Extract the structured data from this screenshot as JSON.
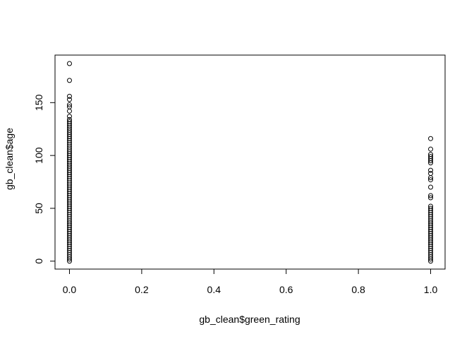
{
  "chart_data": {
    "type": "scatter",
    "title": "",
    "xlabel": "gb_clean$green_rating",
    "ylabel": "gb_clean$age",
    "xlim": [
      -0.04,
      1.04
    ],
    "ylim": [
      -7.5,
      195
    ],
    "x_ticks": [
      0.0,
      0.2,
      0.4,
      0.6,
      0.8,
      1.0
    ],
    "x_tick_labels": [
      "0.0",
      "0.2",
      "0.4",
      "0.6",
      "0.8",
      "1.0"
    ],
    "y_ticks": [
      0,
      50,
      100,
      150
    ],
    "y_tick_labels": [
      "0",
      "50",
      "100",
      "150"
    ],
    "grid": false,
    "legend": "none",
    "marker": "open-circle",
    "series": [
      {
        "x": 0,
        "y": [
          187,
          171,
          156,
          153,
          148,
          146,
          142,
          137,
          134,
          132,
          130,
          128,
          126,
          124,
          122,
          120,
          118,
          116,
          114,
          112,
          110,
          108,
          106,
          104,
          102,
          100,
          98,
          96,
          94,
          92,
          90,
          88,
          86,
          84,
          82,
          80,
          78,
          76,
          74,
          72,
          70,
          68,
          66,
          64,
          62,
          60,
          58,
          56,
          54,
          52,
          50,
          48,
          46,
          44,
          42,
          40,
          38,
          36,
          34,
          32,
          30,
          28,
          26,
          24,
          22,
          20,
          18,
          16,
          14,
          12,
          10,
          8,
          6,
          4,
          2,
          0
        ]
      },
      {
        "x": 1,
        "y": [
          116,
          106,
          101,
          99,
          97,
          95,
          93,
          86,
          83,
          79,
          77,
          70,
          62,
          60,
          52,
          50,
          48,
          46,
          44,
          42,
          40,
          38,
          36,
          34,
          32,
          30,
          28,
          26,
          24,
          22,
          20,
          18,
          16,
          14,
          12,
          10,
          8,
          6,
          4,
          2,
          0
        ]
      }
    ]
  }
}
